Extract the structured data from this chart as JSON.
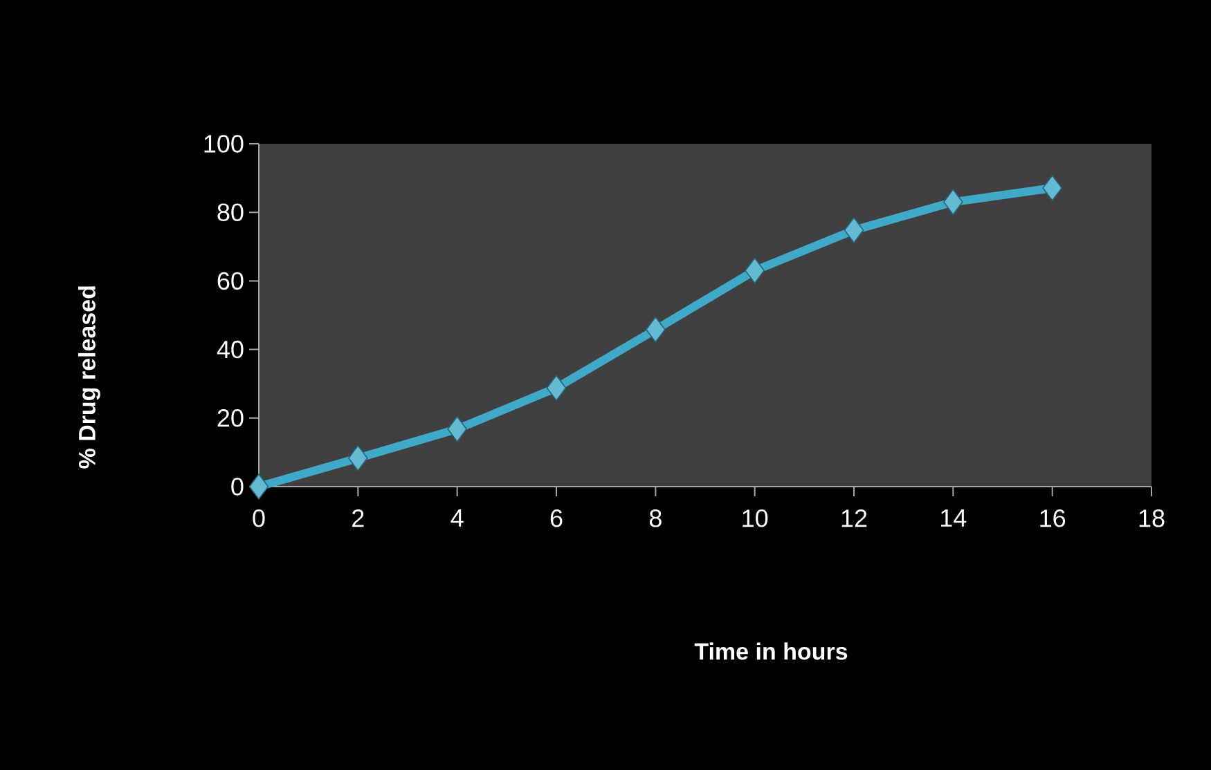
{
  "chart_data": {
    "type": "line",
    "xlabel": "Time in hours",
    "ylabel": "% Drug released",
    "x": [
      0,
      2,
      4,
      6,
      8,
      10,
      12,
      14,
      16
    ],
    "values": [
      0,
      8.3,
      16.8,
      28.8,
      45.8,
      63,
      74.8,
      83,
      87.1
    ],
    "color": "#3fa9c8",
    "marker": "diamond",
    "line_style": "solid",
    "xlim": [
      0,
      18
    ],
    "xticks": [
      0,
      2,
      4,
      6,
      8,
      10,
      12,
      14,
      16,
      18
    ],
    "ylim": [
      0,
      100
    ],
    "yticks": [
      0,
      20,
      40,
      60,
      80,
      100
    ]
  }
}
